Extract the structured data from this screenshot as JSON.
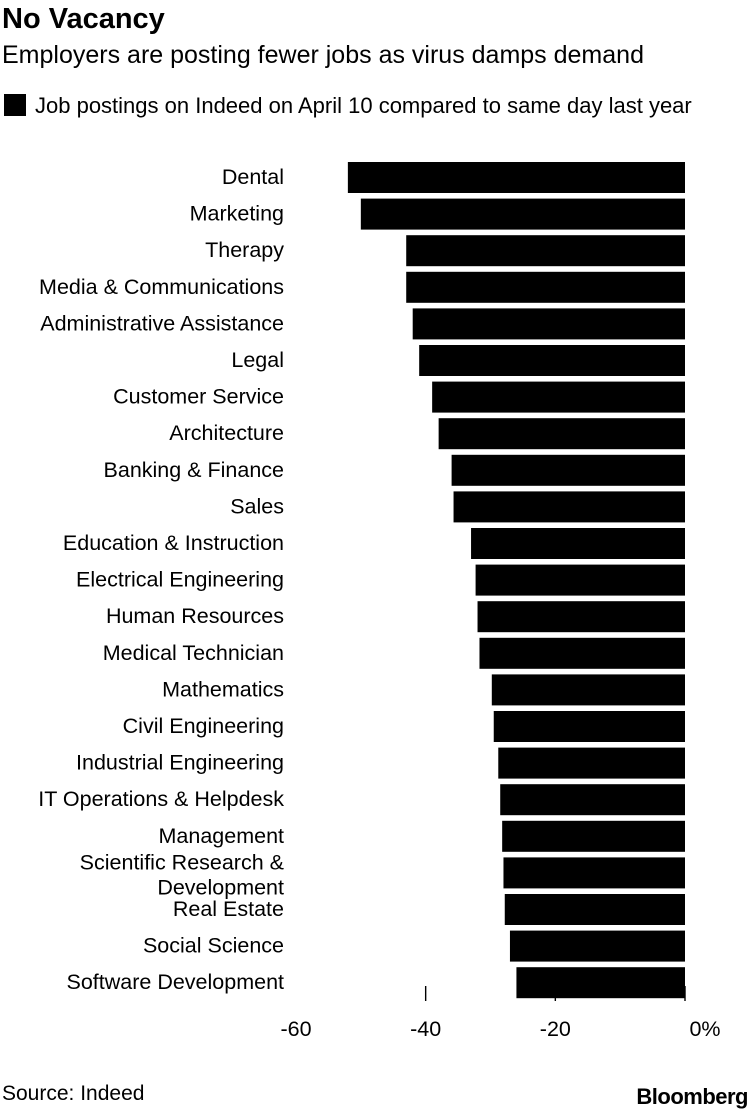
{
  "chart_data": {
    "type": "bar",
    "orientation": "horizontal",
    "title": "No Vacancy",
    "subtitle": "Employers are posting fewer jobs as virus damps demand",
    "series": [
      {
        "name": "Job postings on Indeed on April 10 compared to same day last year",
        "color": "#000000",
        "values": [
          -52,
          -50,
          -43,
          -43,
          -42,
          -41,
          -39,
          -38,
          -36,
          -35.7,
          -33,
          -32.3,
          -32,
          -31.7,
          -29.8,
          -29.5,
          -28.8,
          -28.5,
          -28.2,
          -28,
          -27.8,
          -27,
          -26
        ]
      }
    ],
    "categories": [
      "Dental",
      "Marketing",
      "Therapy",
      "Media & Communications",
      "Administrative Assistance",
      "Legal",
      "Customer Service",
      "Architecture",
      "Banking & Finance",
      "Sales",
      "Education & Instruction",
      "Electrical Engineering",
      "Human Resources",
      "Medical Technician",
      "Mathematics",
      "Civil Engineering",
      "Industrial Engineering",
      "IT Operations & Helpdesk",
      "Management",
      "Scientific Research & Development",
      "Real Estate",
      "Social Science",
      "Software Development"
    ],
    "xlim": [
      -60,
      0
    ],
    "xticks": [
      -60,
      -40,
      -20,
      0
    ],
    "xtick_labels": [
      "-60",
      "-40",
      "-20",
      "0%"
    ],
    "xlabel": "",
    "ylabel": "",
    "grid": false,
    "legend_position": "top-left"
  },
  "footer": {
    "source": "Source: Indeed",
    "brand": "Bloomberg"
  }
}
